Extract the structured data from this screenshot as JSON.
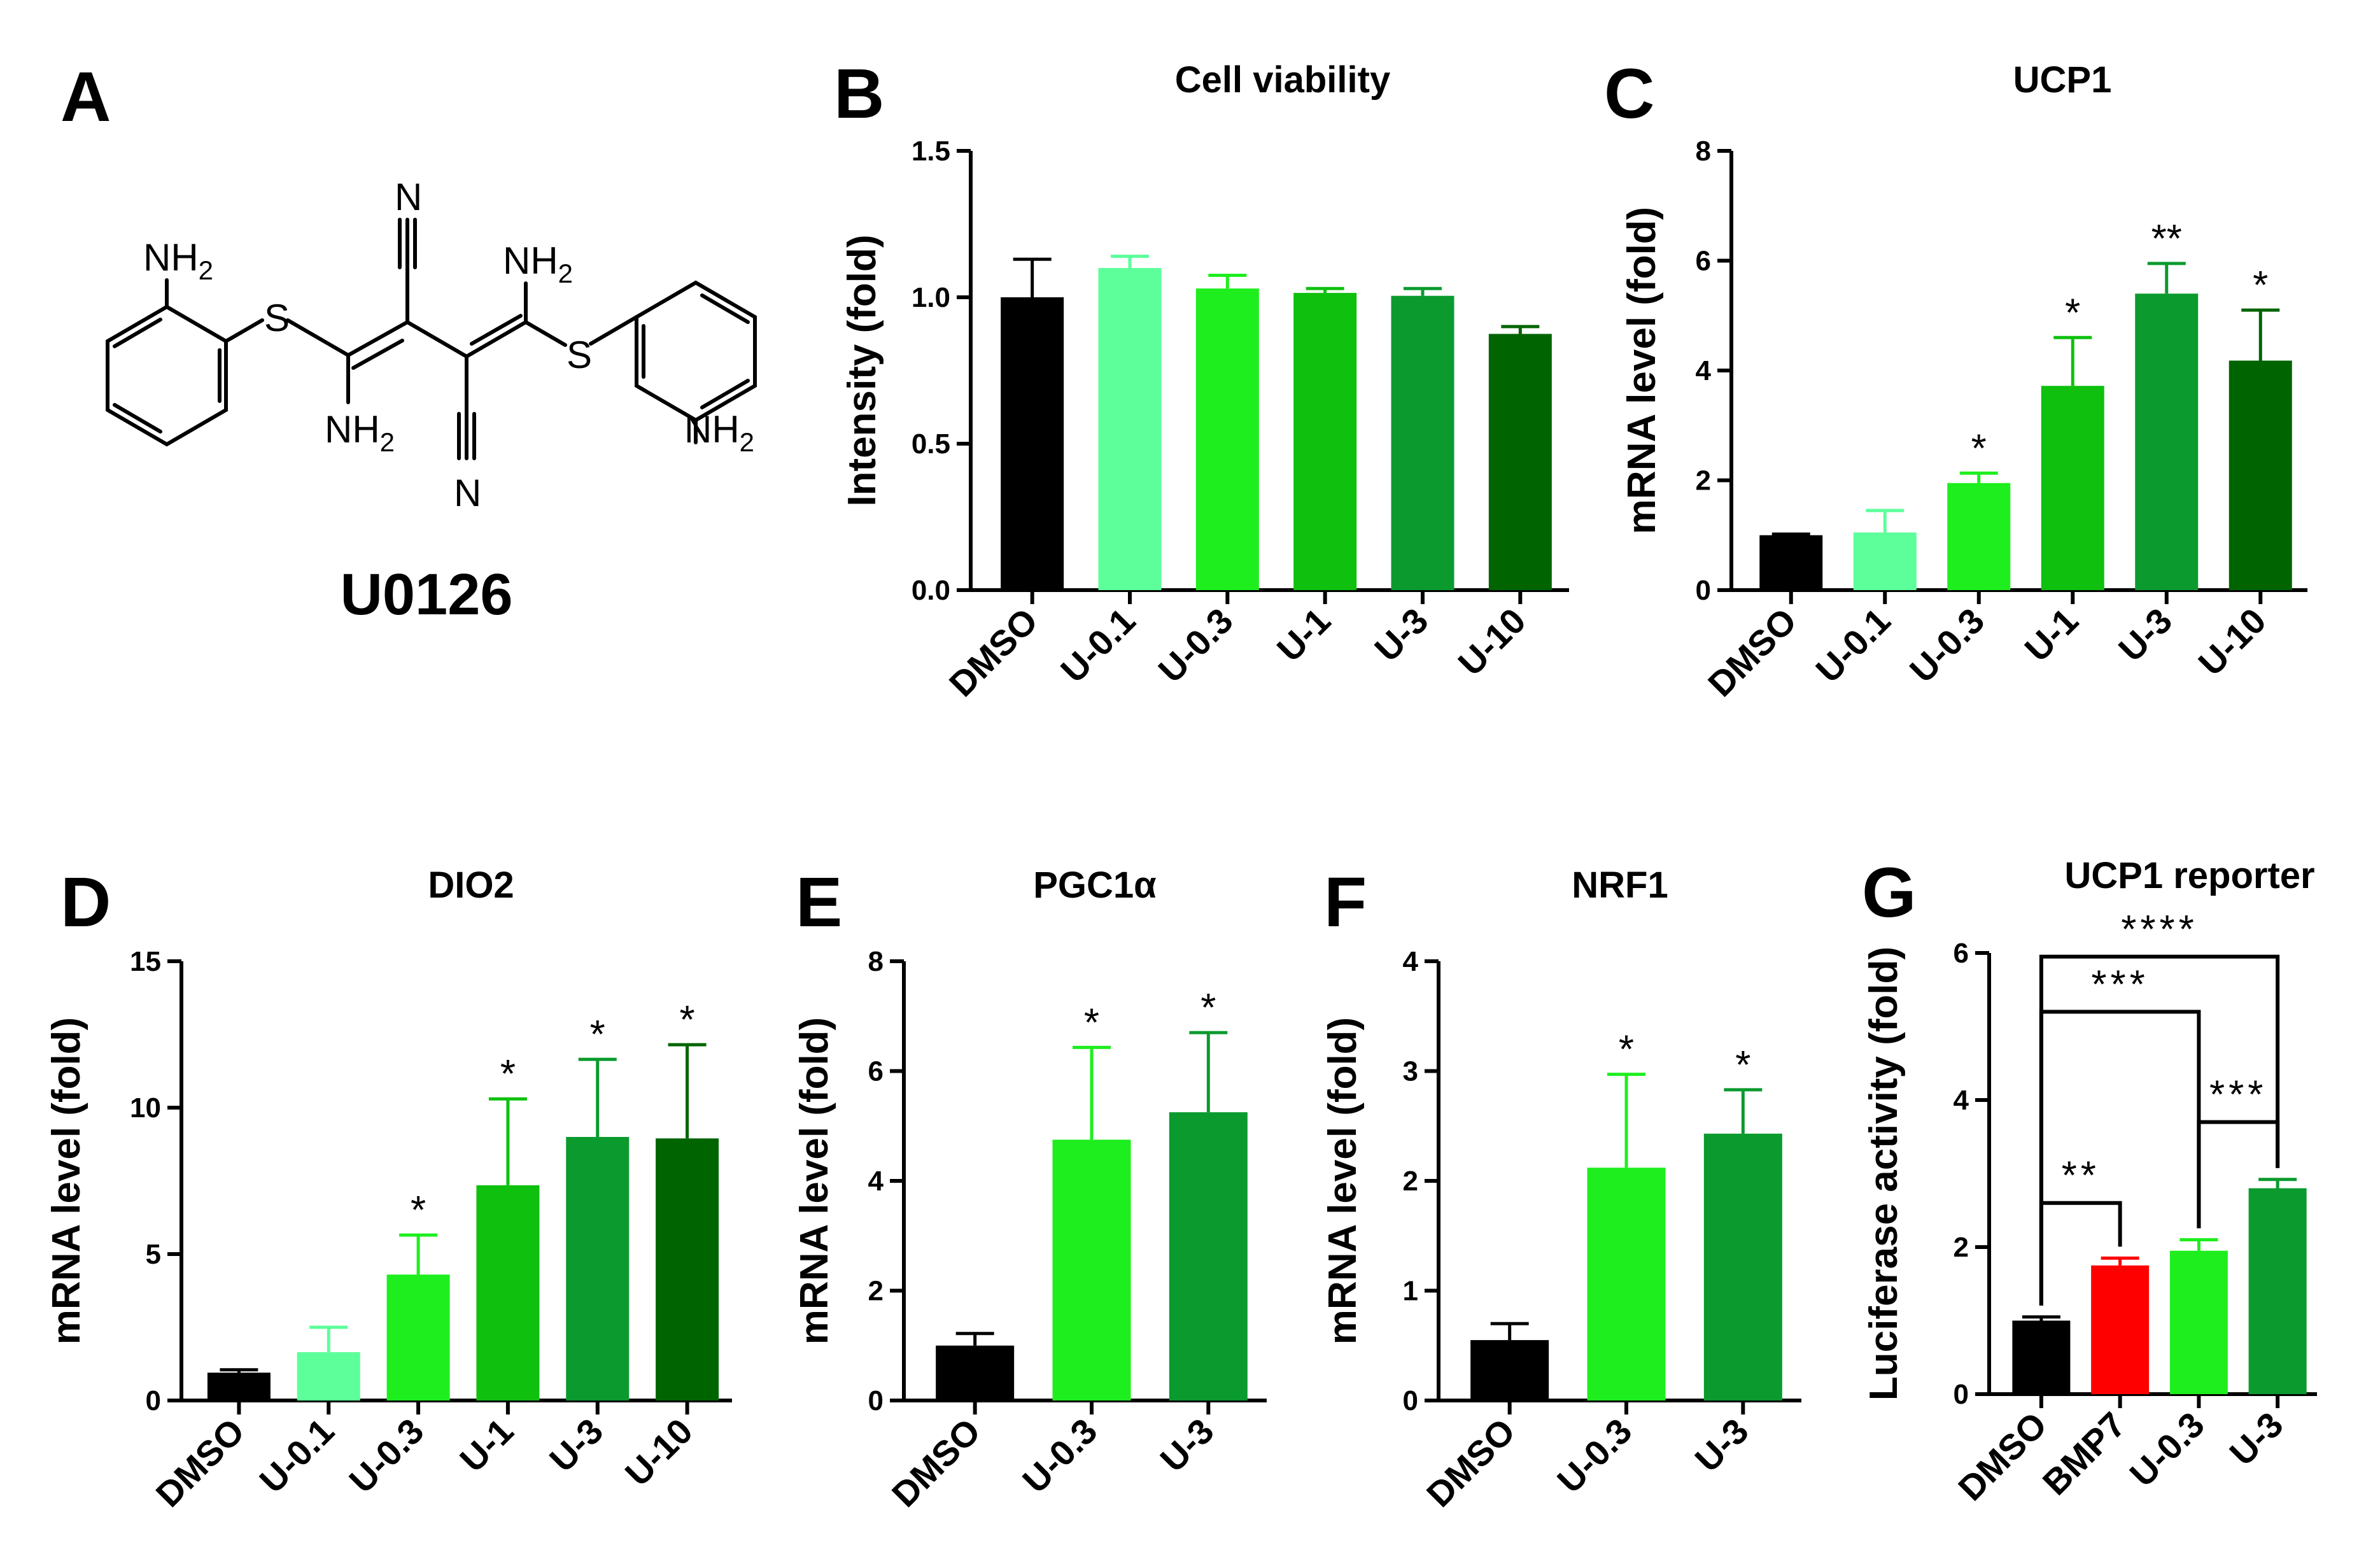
{
  "panel_a": {
    "letter": "A",
    "compound_name": "U0126",
    "atoms": {
      "n": "N",
      "nh": "NH",
      "sub2": "2",
      "s": "S"
    }
  },
  "chart_data": [
    {
      "id": "B",
      "letter": "B",
      "type": "bar",
      "title": "Cell viability",
      "ylabel": "Intensity (fold)",
      "ylim": [
        0,
        1.5
      ],
      "yticks": [
        0.0,
        0.5,
        1.0,
        1.5
      ],
      "ytick_labels": [
        "0.0",
        "0.5",
        "1.0",
        "1.5"
      ],
      "categories": [
        "DMSO",
        "U-0.1",
        "U-0.3",
        "U-1",
        "U-3",
        "U-10"
      ],
      "values": [
        1.0,
        1.1,
        1.03,
        1.015,
        1.005,
        0.875
      ],
      "errors": [
        0.13,
        0.04,
        0.045,
        0.015,
        0.025,
        0.025
      ],
      "colors": [
        "#000000",
        "#5CFF9A",
        "#1EEE1E",
        "#0FC00F",
        "#0A9A2E",
        "#006400"
      ],
      "stars": [
        "",
        "",
        "",
        "",
        "",
        ""
      ],
      "brackets": []
    },
    {
      "id": "C",
      "letter": "C",
      "type": "bar",
      "title": "UCP1",
      "ylabel": "mRNA level (fold)",
      "ylim": [
        0,
        8
      ],
      "yticks": [
        0,
        2,
        4,
        6,
        8
      ],
      "ytick_labels": [
        "0",
        "2",
        "4",
        "6",
        "8"
      ],
      "categories": [
        "DMSO",
        "U-0.1",
        "U-0.3",
        "U-1",
        "U-3",
        "U-10"
      ],
      "values": [
        1.0,
        1.05,
        1.95,
        3.72,
        5.4,
        4.18
      ],
      "errors": [
        0.02,
        0.4,
        0.18,
        0.88,
        0.55,
        0.92
      ],
      "colors": [
        "#000000",
        "#5CFF9A",
        "#1EEE1E",
        "#0FC00F",
        "#0A9A2E",
        "#006400"
      ],
      "stars": [
        "",
        "",
        "*",
        "*",
        "**",
        "*"
      ],
      "brackets": []
    },
    {
      "id": "D",
      "letter": "D",
      "type": "bar",
      "title": "DIO2",
      "ylabel": "mRNA level (fold)",
      "ylim": [
        0,
        15
      ],
      "yticks": [
        0,
        5,
        10,
        15
      ],
      "ytick_labels": [
        "0",
        "5",
        "10",
        "15"
      ],
      "categories": [
        "DMSO",
        "U-0.1",
        "U-0.3",
        "U-1",
        "U-3",
        "U-10"
      ],
      "values": [
        0.95,
        1.65,
        4.3,
        7.35,
        9.0,
        8.95
      ],
      "errors": [
        0.1,
        0.85,
        1.35,
        2.95,
        2.65,
        3.2
      ],
      "colors": [
        "#000000",
        "#5CFF9A",
        "#1EEE1E",
        "#0FC00F",
        "#0A9A2E",
        "#006400"
      ],
      "stars": [
        "",
        "",
        "*",
        "*",
        "*",
        "*"
      ],
      "brackets": []
    },
    {
      "id": "E",
      "letter": "E",
      "type": "bar",
      "title": "PGC1α",
      "ylabel": "mRNA level (fold)",
      "ylim": [
        0,
        8
      ],
      "yticks": [
        0,
        2,
        4,
        6,
        8
      ],
      "ytick_labels": [
        "0",
        "2",
        "4",
        "6",
        "8"
      ],
      "categories": [
        "DMSO",
        "U-0.3",
        "U-3"
      ],
      "values": [
        1.0,
        4.75,
        5.25
      ],
      "errors": [
        0.22,
        1.68,
        1.45
      ],
      "colors": [
        "#000000",
        "#1EEE1E",
        "#0A9A2E"
      ],
      "stars": [
        "",
        "*",
        "*"
      ],
      "brackets": []
    },
    {
      "id": "F",
      "letter": "F",
      "type": "bar",
      "title": "NRF1",
      "ylabel": "mRNA level (fold)",
      "ylim": [
        0,
        4
      ],
      "yticks": [
        0,
        1,
        2,
        3,
        4
      ],
      "ytick_labels": [
        "0",
        "1",
        "2",
        "3",
        "4"
      ],
      "categories": [
        "DMSO",
        "U-0.3",
        "U-3"
      ],
      "values": [
        0.55,
        2.12,
        2.43
      ],
      "errors": [
        0.15,
        0.85,
        0.4
      ],
      "colors": [
        "#000000",
        "#1EEE1E",
        "#0A9A2E"
      ],
      "stars": [
        "",
        "*",
        "*"
      ],
      "brackets": []
    },
    {
      "id": "G",
      "letter": "G",
      "type": "bar",
      "title": "UCP1 reporter",
      "ylabel": "Luciferase activity (fold)",
      "ylim": [
        0,
        6
      ],
      "yticks": [
        0,
        2,
        4,
        6
      ],
      "ytick_labels": [
        "0",
        "2",
        "4",
        "6"
      ],
      "categories": [
        "DMSO",
        "BMP7",
        "U-0.3",
        "U-3"
      ],
      "values": [
        1.0,
        1.75,
        1.95,
        2.8
      ],
      "errors": [
        0.05,
        0.1,
        0.15,
        0.12
      ],
      "colors": [
        "#000000",
        "#FF0000",
        "#1EEE1E",
        "#0A9A2E"
      ],
      "stars": [
        "",
        "",
        "",
        ""
      ],
      "brackets": [
        {
          "from": 0,
          "to": 1,
          "level": 2.6,
          "label": "**"
        },
        {
          "from": 2,
          "to": 3,
          "level": 3.7,
          "label": "***"
        },
        {
          "from": 0,
          "to": 2,
          "level": 5.2,
          "label": "***"
        },
        {
          "from": 0,
          "to": 3,
          "level": 5.95,
          "label": "****"
        }
      ]
    }
  ]
}
